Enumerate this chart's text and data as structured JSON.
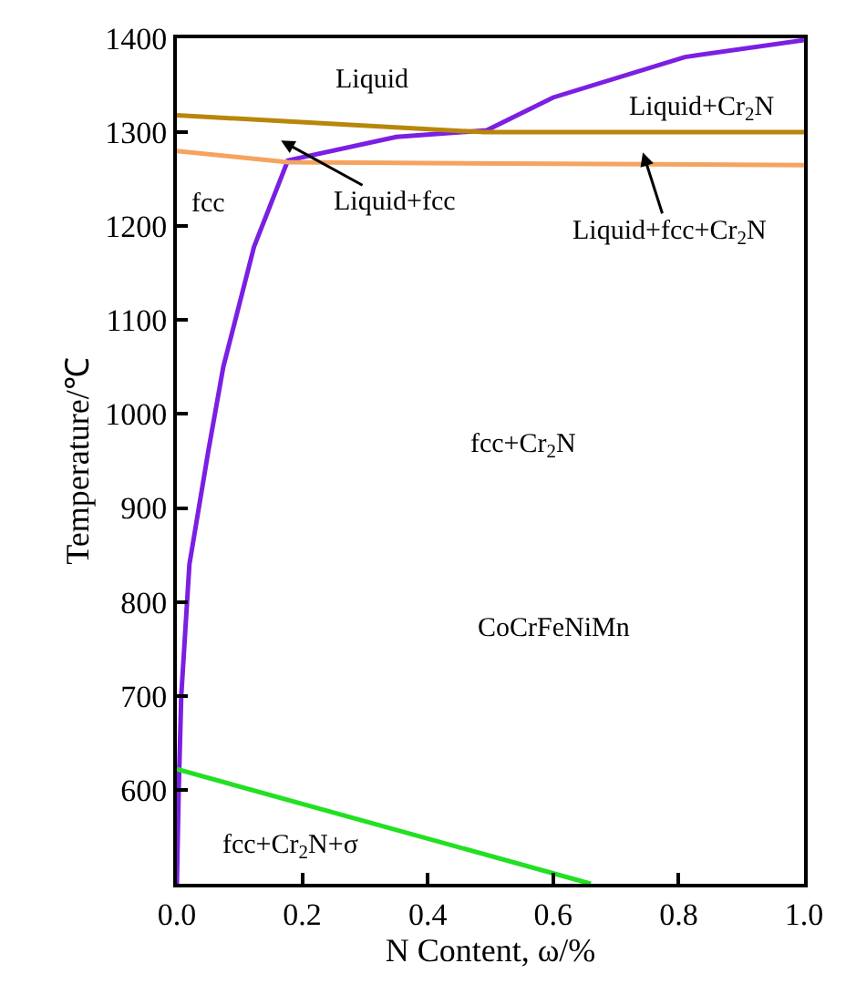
{
  "chart_data": {
    "type": "line",
    "xlabel": "N Content, ω/%",
    "ylabel": "Temperature/℃",
    "xlim": [
      0,
      1.0
    ],
    "xticks": [
      {
        "value": 0,
        "label": "0.0"
      },
      0.2,
      0.4,
      0.6,
      0.8,
      {
        "value": 1.0,
        "label": "1.0"
      }
    ],
    "ylim": [
      500,
      1400
    ],
    "yticks": [
      600,
      700,
      800,
      900,
      1000,
      1100,
      1200,
      1300,
      1400
    ],
    "marker": "none",
    "line_style": "solid",
    "series": [
      {
        "color": "#7b1fe3",
        "x": [
          0,
          0.003,
          0.007,
          0.02,
          0.05,
          0.074,
          0.123,
          0.177,
          0.35,
          0.494,
          0.6,
          0.81,
          1.0
        ],
        "values": [
          500,
          600,
          700,
          840,
          960,
          1050,
          1178,
          1270,
          1295,
          1302,
          1337,
          1380,
          1398
        ]
      },
      {
        "color": "#b8860b",
        "x": [
          0,
          0.49,
          1.0
        ],
        "values": [
          1318,
          1300,
          1300
        ]
      },
      {
        "color": "#f4a460",
        "x": [
          0,
          0.177,
          1.0
        ],
        "values": [
          1280,
          1268,
          1265
        ]
      },
      {
        "color": "#22e022",
        "x": [
          0,
          0.66
        ],
        "values": [
          622,
          500
        ]
      }
    ],
    "annotations": [
      "Liquid",
      "Liquid+Cr$_{2}$N",
      "fcc",
      "Liquid+fcc",
      "Liquid+fcc+Cr$_{2}$N",
      "fcc+Cr$_{2}$N",
      "CoCrFeNiMn",
      "fcc+Cr$_{2}$N+σ"
    ]
  }
}
